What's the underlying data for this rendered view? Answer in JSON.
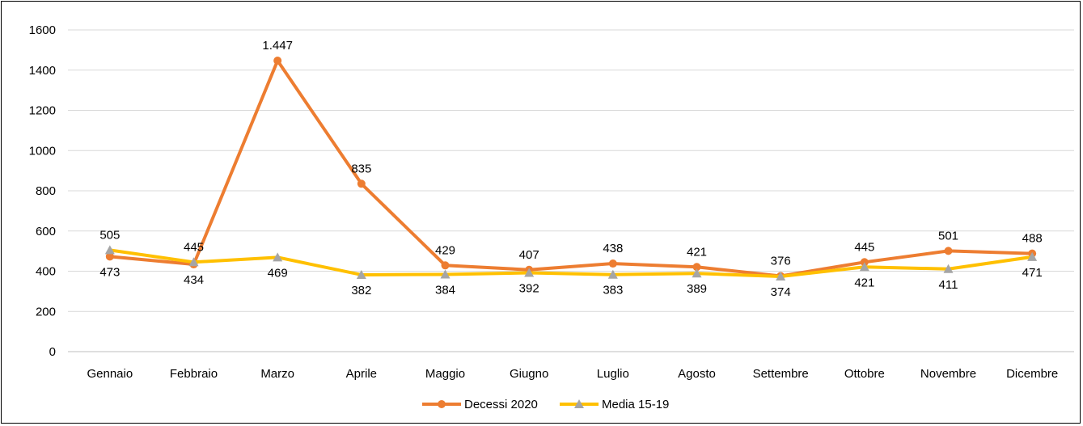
{
  "chart_data": {
    "type": "line",
    "title": "",
    "xlabel": "",
    "ylabel": "",
    "categories": [
      "Gennaio",
      "Febbraio",
      "Marzo",
      "Aprile",
      "Maggio",
      "Giugno",
      "Luglio",
      "Agosto",
      "Settembre",
      "Ottobre",
      "Novembre",
      "Dicembre"
    ],
    "ylim": [
      0,
      1600
    ],
    "yticks": [
      0,
      200,
      400,
      600,
      800,
      1000,
      1200,
      1400,
      1600
    ],
    "grid": true,
    "legend_position": "bottom",
    "series": [
      {
        "name": "Decessi 2020",
        "color": "#ED7D31",
        "marker": "circle",
        "values": [
          473,
          434,
          1447,
          835,
          429,
          407,
          438,
          421,
          376,
          445,
          501,
          488
        ],
        "labels": [
          "473",
          "434",
          "1.447",
          "835",
          "429",
          "407",
          "438",
          "421",
          "376",
          "445",
          "501",
          "488"
        ]
      },
      {
        "name": "Media 15-19",
        "color": "#FFC000",
        "marker": "triangle",
        "marker_color": "#A5A5A5",
        "values": [
          505,
          445,
          469,
          382,
          384,
          392,
          383,
          389,
          374,
          421,
          411,
          471
        ],
        "labels": [
          "505",
          "445",
          "469",
          "382",
          "384",
          "392",
          "383",
          "389",
          "374",
          "421",
          "411",
          "471"
        ]
      }
    ]
  }
}
